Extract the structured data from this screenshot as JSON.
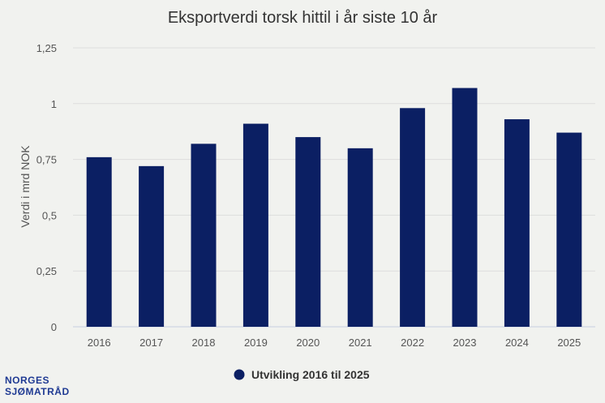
{
  "chart_data": {
    "type": "bar",
    "title": "Eksportverdi torsk hittil i år siste 10 år",
    "xlabel": "",
    "ylabel": "Verdi i mrd NOK",
    "categories": [
      "2016",
      "2017",
      "2018",
      "2019",
      "2020",
      "2021",
      "2022",
      "2023",
      "2024",
      "2025"
    ],
    "series": [
      {
        "name": "Utvikling 2016 til 2025",
        "values": [
          0.76,
          0.72,
          0.82,
          0.91,
          0.85,
          0.8,
          0.98,
          1.07,
          0.93,
          0.87
        ],
        "color": "#0b1f63"
      }
    ],
    "ylim": [
      0,
      1.25
    ],
    "yticks": [
      "0",
      "0,25",
      "0,5",
      "0,75",
      "1",
      "1,25"
    ],
    "grid": true,
    "legend": "bottom-center"
  },
  "logo": {
    "line1": "NORGES",
    "line2": "SJØMATRÅD"
  }
}
